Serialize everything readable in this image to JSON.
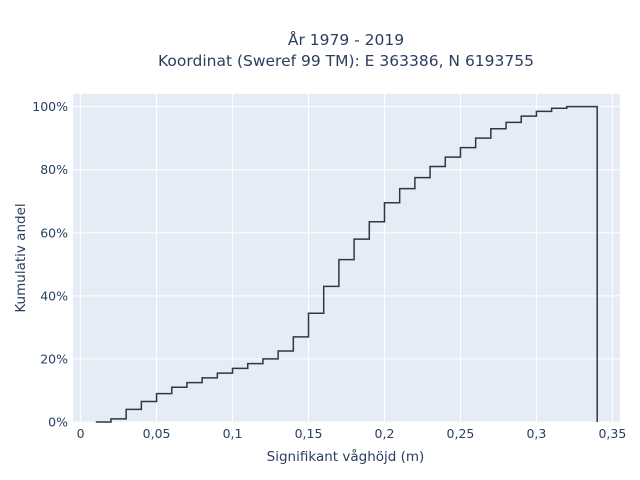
{
  "chart_data": {
    "type": "line",
    "title_line1": "År 1979 - 2019",
    "title_line2": "Koordinat (Sweref 99 TM): E 363386, N 6193755",
    "xlabel": "Signifikant våghöjd (m)",
    "ylabel": "Kumulativ andel",
    "xlim": [
      -0.005,
      0.355
    ],
    "ylim": [
      0,
      1.04
    ],
    "grid": true,
    "x_ticks": [
      0,
      0.05,
      0.1,
      0.15,
      0.2,
      0.25,
      0.3,
      0.35
    ],
    "x_tick_labels": [
      "0",
      "0,05",
      "0,1",
      "0,15",
      "0,2",
      "0,25",
      "0,3",
      "0,35"
    ],
    "y_ticks": [
      0,
      0.2,
      0.4,
      0.6,
      0.8,
      1.0
    ],
    "y_tick_labels": [
      "0%",
      "20%",
      "40%",
      "60%",
      "80%",
      "100%"
    ],
    "line_color": "#2d3748",
    "series": [
      {
        "x": [
          0.01,
          0.02,
          0.03,
          0.04,
          0.05,
          0.06,
          0.07,
          0.08,
          0.09,
          0.1,
          0.11,
          0.12,
          0.13,
          0.14,
          0.15,
          0.16,
          0.17,
          0.18,
          0.19,
          0.2,
          0.21,
          0.22,
          0.23,
          0.24,
          0.25,
          0.26,
          0.27,
          0.28,
          0.29,
          0.3,
          0.31,
          0.32,
          0.33,
          0.34
        ],
        "y": [
          0.0,
          0.01,
          0.04,
          0.065,
          0.09,
          0.11,
          0.125,
          0.14,
          0.155,
          0.17,
          0.185,
          0.2,
          0.225,
          0.27,
          0.345,
          0.43,
          0.515,
          0.58,
          0.635,
          0.695,
          0.74,
          0.775,
          0.81,
          0.84,
          0.87,
          0.9,
          0.93,
          0.95,
          0.97,
          0.985,
          0.995,
          1.0,
          1.0,
          1.0
        ]
      }
    ]
  }
}
